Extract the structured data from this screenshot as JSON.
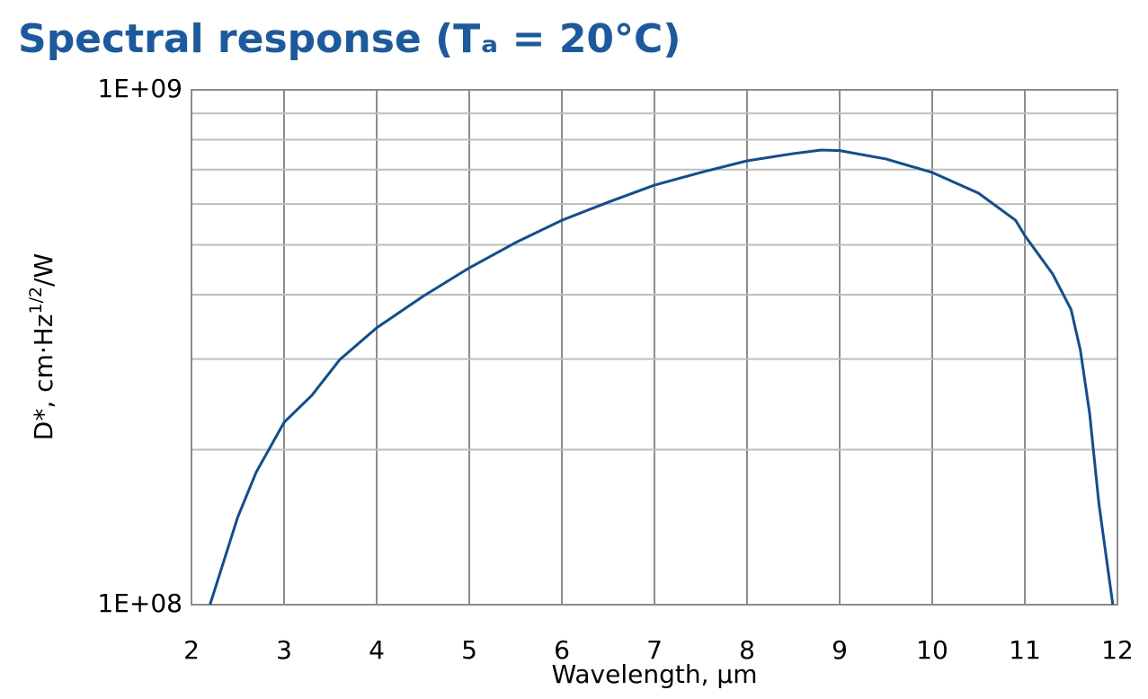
{
  "chart_data": {
    "type": "line",
    "title": "Spectral response (Tₐ = 20°C)",
    "xlabel": "Wavelength, µm",
    "ylabel": [
      "D*, cm·Hz",
      "1/2",
      "/W"
    ],
    "x": [
      2.2,
      2.5,
      2.7,
      3.0,
      3.3,
      3.6,
      4.0,
      4.5,
      5.0,
      5.5,
      6.0,
      6.5,
      7.0,
      7.5,
      8.0,
      8.5,
      8.8,
      9.0,
      9.5,
      10.0,
      10.5,
      10.9,
      11.0,
      11.3,
      11.5,
      11.6,
      11.7,
      11.8,
      11.95
    ],
    "values": [
      100000000,
      148000000,
      181000000,
      226000000,
      255000000,
      299000000,
      345000000,
      397000000,
      451000000,
      505000000,
      558000000,
      605000000,
      653000000,
      691000000,
      728000000,
      752000000,
      764000000,
      762000000,
      734000000,
      691000000,
      630000000,
      558000000,
      521000000,
      439000000,
      374000000,
      312000000,
      235000000,
      157000000,
      100000000
    ],
    "color": "#0d4f96",
    "xlim": [
      2,
      12
    ],
    "xticks": [
      2,
      3,
      4,
      5,
      6,
      7,
      8,
      9,
      10,
      11,
      12
    ],
    "ylim": [
      100000000,
      1000000000
    ],
    "yticks": [
      {
        "value": 100000000,
        "label": "1E+08"
      },
      {
        "value": 1000000000,
        "label": "1E+09"
      }
    ],
    "yminor": [
      200000000,
      300000000,
      400000000,
      500000000,
      600000000,
      700000000,
      800000000,
      900000000
    ],
    "ylog": true,
    "grid": true
  }
}
